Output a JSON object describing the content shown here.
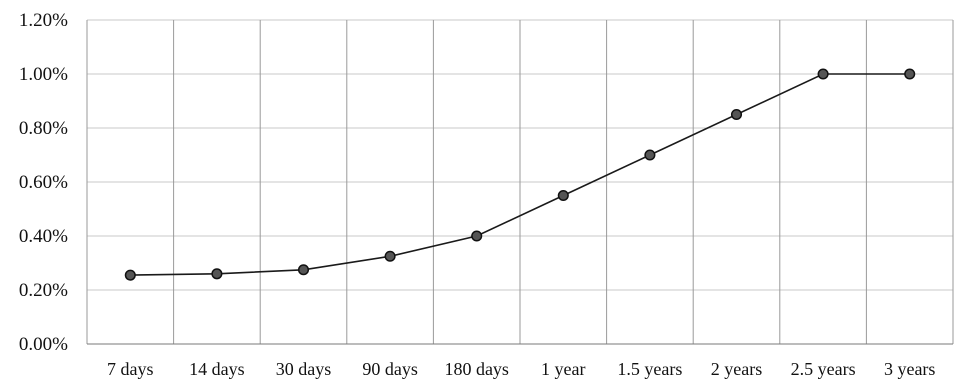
{
  "chart_data": {
    "type": "line",
    "title": "",
    "xlabel": "",
    "ylabel": "",
    "categories": [
      "7 days",
      "14 days",
      "30 days",
      "90 days",
      "180 days",
      "1 year",
      "1.5 years",
      "2 years",
      "2.5 years",
      "3 years"
    ],
    "series": [
      {
        "values": [
          0.255,
          0.26,
          0.275,
          0.325,
          0.4,
          0.55,
          0.7,
          0.85,
          1.0,
          1.0
        ]
      }
    ],
    "y_ticks": [
      "0.00%",
      "0.20%",
      "0.40%",
      "0.60%",
      "0.80%",
      "1.00%",
      "1.20%"
    ],
    "ylim": [
      0,
      1.2
    ],
    "grid": true,
    "legend": "none",
    "colors": {
      "line": "#1a1a1a",
      "marker_fill": "#555555",
      "grid": "#c8c8c8"
    }
  }
}
